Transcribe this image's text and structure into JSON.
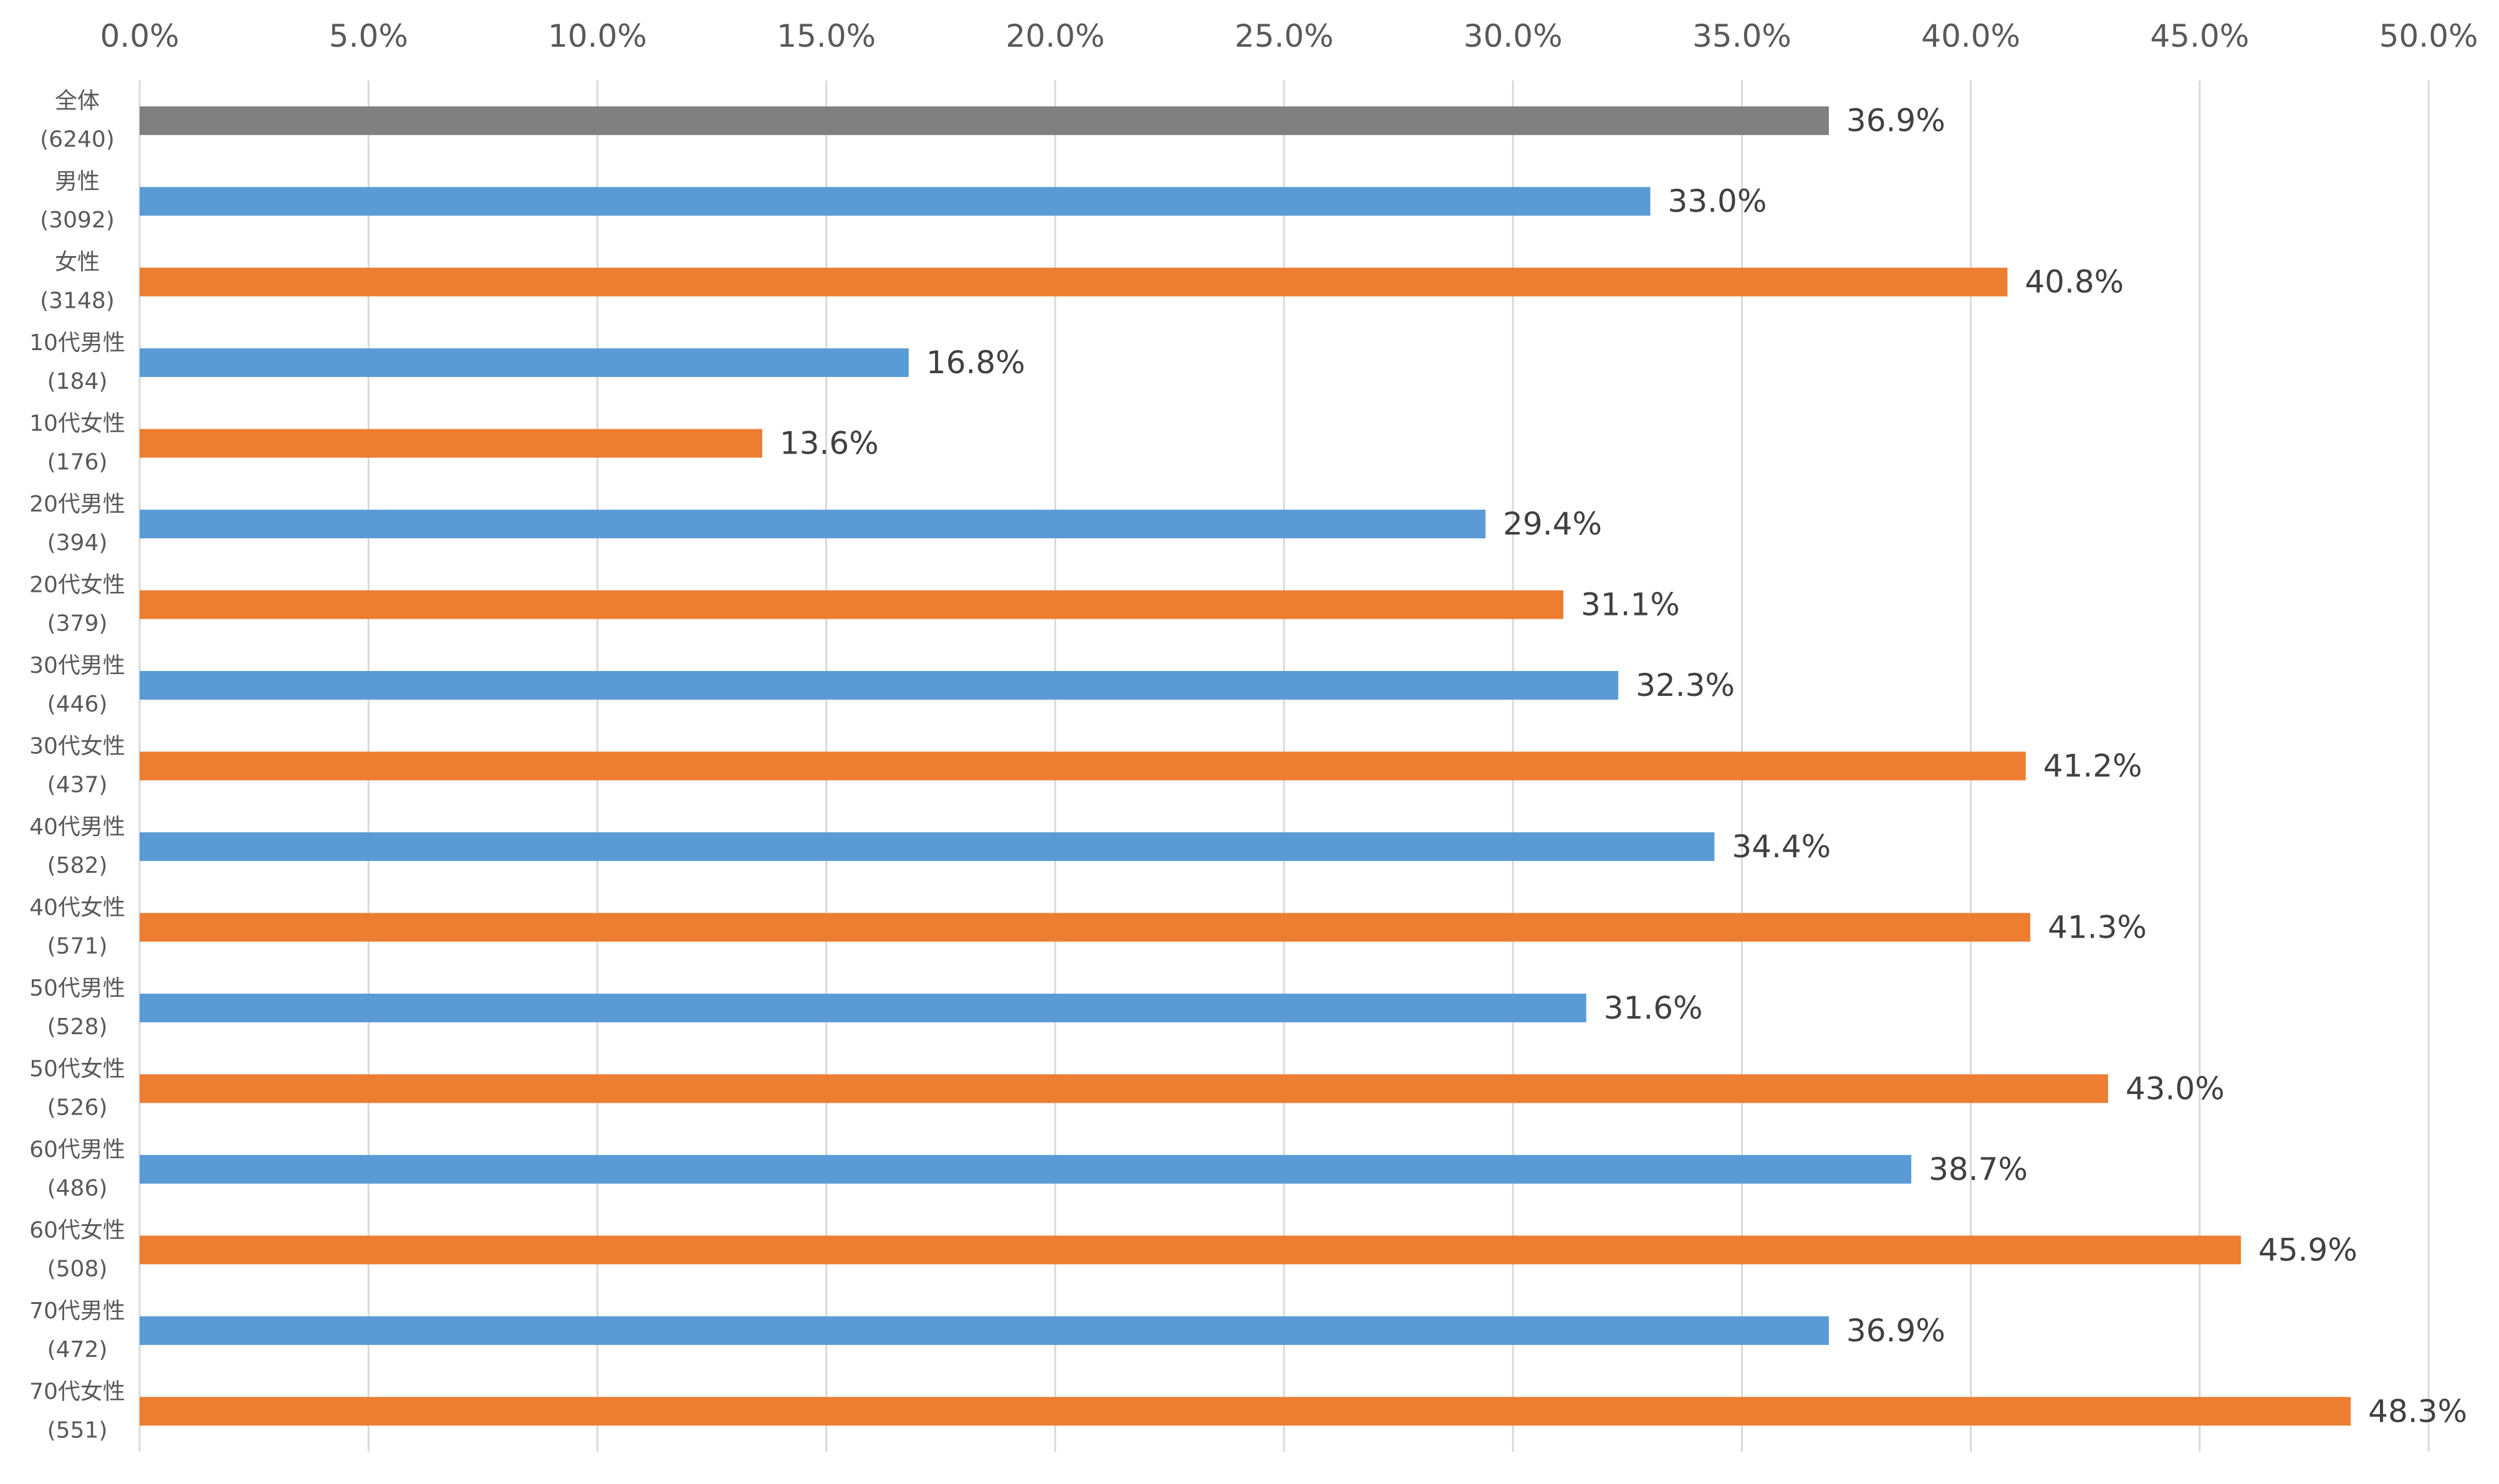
{
  "chart_data": {
    "type": "bar",
    "orientation": "horizontal",
    "title": "",
    "xlabel": "",
    "ylabel": "",
    "xlim": [
      0,
      50
    ],
    "x_ticks": [
      "0.0%",
      "5.0%",
      "10.0%",
      "15.0%",
      "20.0%",
      "25.0%",
      "30.0%",
      "35.0%",
      "40.0%",
      "45.0%",
      "50.0%"
    ],
    "x_tick_values": [
      0,
      5,
      10,
      15,
      20,
      25,
      30,
      35,
      40,
      45,
      50
    ],
    "grid": true,
    "axis_position": "top",
    "categories": [
      {
        "name": "全体",
        "n": "(6240)",
        "group": "total"
      },
      {
        "name": "男性",
        "n": "(3092)",
        "group": "male"
      },
      {
        "name": "女性",
        "n": "(3148)",
        "group": "female"
      },
      {
        "name": "10代男性",
        "n": "(184)",
        "group": "male"
      },
      {
        "name": "10代女性",
        "n": "(176)",
        "group": "female"
      },
      {
        "name": "20代男性",
        "n": "(394)",
        "group": "male"
      },
      {
        "name": "20代女性",
        "n": "(379)",
        "group": "female"
      },
      {
        "name": "30代男性",
        "n": "(446)",
        "group": "male"
      },
      {
        "name": "30代女性",
        "n": "(437)",
        "group": "female"
      },
      {
        "name": "40代男性",
        "n": "(582)",
        "group": "male"
      },
      {
        "name": "40代女性",
        "n": "(571)",
        "group": "female"
      },
      {
        "name": "50代男性",
        "n": "(528)",
        "group": "male"
      },
      {
        "name": "50代女性",
        "n": "(526)",
        "group": "female"
      },
      {
        "name": "60代男性",
        "n": "(486)",
        "group": "male"
      },
      {
        "name": "60代女性",
        "n": "(508)",
        "group": "female"
      },
      {
        "name": "70代男性",
        "n": "(472)",
        "group": "male"
      },
      {
        "name": "70代女性",
        "n": "(551)",
        "group": "female"
      }
    ],
    "values": [
      36.9,
      33.0,
      40.8,
      16.8,
      13.6,
      29.4,
      31.1,
      32.3,
      41.2,
      34.4,
      41.3,
      31.6,
      43.0,
      38.7,
      45.9,
      36.9,
      48.3
    ],
    "data_labels": [
      "36.9%",
      "33.0%",
      "40.8%",
      "16.8%",
      "13.6%",
      "29.4%",
      "31.1%",
      "32.3%",
      "41.2%",
      "34.4%",
      "41.3%",
      "31.6%",
      "43.0%",
      "38.7%",
      "45.9%",
      "36.9%",
      "48.3%"
    ],
    "colors": {
      "total": "#808080",
      "male": "#5b9bd5",
      "female": "#ed7d31"
    }
  }
}
